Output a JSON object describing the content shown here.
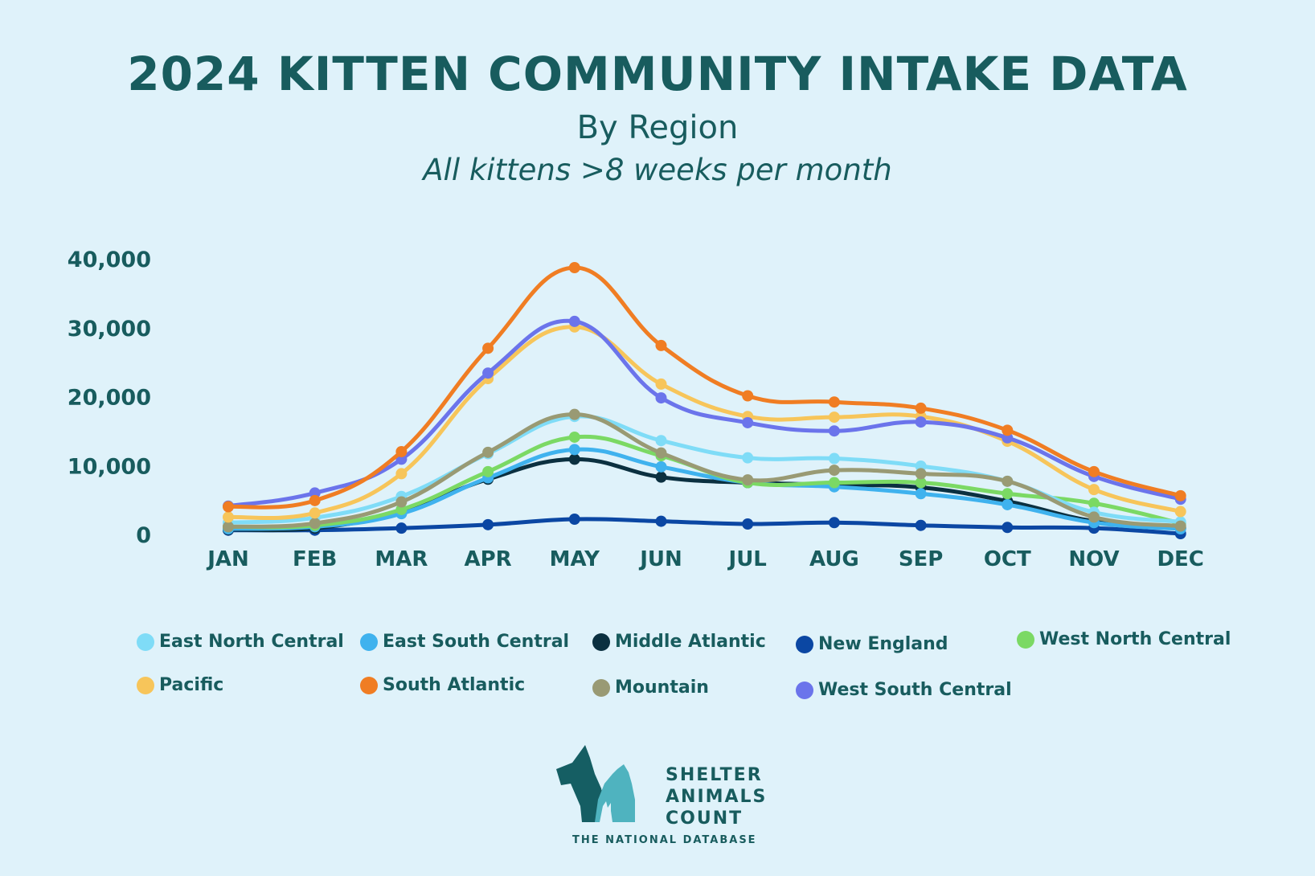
{
  "header": {
    "title": "2024 KITTEN COMMUNITY INTAKE DATA",
    "subtitle": "By Region",
    "subtitle2": "All kittens >8 weeks per month"
  },
  "chart_data": {
    "type": "line",
    "title": "2024 KITTEN COMMUNITY INTAKE DATA",
    "subtitle": "By Region",
    "xlabel": "",
    "ylabel": "",
    "categories": [
      "JAN",
      "FEB",
      "MAR",
      "APR",
      "MAY",
      "JUN",
      "JUL",
      "AUG",
      "SEP",
      "OCT",
      "NOV",
      "DEC"
    ],
    "y_ticks": [
      {
        "value": 0,
        "label": "0"
      },
      {
        "value": 10000,
        "label": "10,000"
      },
      {
        "value": 20000,
        "label": "20,000"
      },
      {
        "value": 30000,
        "label": "30,000"
      },
      {
        "value": 40000,
        "label": "40,000"
      }
    ],
    "ylim": [
      0,
      40000
    ],
    "grid": false,
    "legend_position": "bottom",
    "series": [
      {
        "name": "New England",
        "color": "#0b47a3",
        "values": [
          500,
          500,
          800,
          1300,
          2100,
          1800,
          1400,
          1600,
          1200,
          900,
          800,
          0
        ]
      },
      {
        "name": "Middle Atlantic",
        "color": "#0b3040",
        "values": [
          600,
          800,
          3200,
          7900,
          10800,
          8200,
          7400,
          7100,
          6700,
          4700,
          1800,
          800
        ]
      },
      {
        "name": "East South Central",
        "color": "#3fb2ee",
        "values": [
          700,
          1000,
          2900,
          8100,
          12200,
          9700,
          7400,
          6800,
          5800,
          4200,
          1600,
          700
        ]
      },
      {
        "name": "West North Central",
        "color": "#7bd964",
        "values": [
          1000,
          1200,
          3500,
          9000,
          14000,
          11300,
          7400,
          7400,
          7400,
          5800,
          4400,
          1500
        ]
      },
      {
        "name": "East North Central",
        "color": "#7fdcf7",
        "values": [
          1600,
          2300,
          5400,
          11600,
          17000,
          13500,
          11000,
          10900,
          9800,
          7600,
          3100,
          1700
        ]
      },
      {
        "name": "Mountain",
        "color": "#999a74",
        "values": [
          1000,
          1500,
          4600,
          11800,
          17300,
          11700,
          7800,
          9200,
          8700,
          7600,
          2400,
          1100
        ]
      },
      {
        "name": "Pacific",
        "color": "#f7c55a",
        "values": [
          2400,
          3000,
          8700,
          22500,
          30000,
          21700,
          17000,
          16900,
          17000,
          13400,
          6400,
          3200
        ]
      },
      {
        "name": "West South Central",
        "color": "#6b74eb",
        "values": [
          4000,
          5900,
          10800,
          23300,
          30800,
          19700,
          16100,
          14900,
          16200,
          13900,
          8300,
          5000
        ]
      },
      {
        "name": "South Atlantic",
        "color": "#f07d23",
        "values": [
          3900,
          4800,
          11900,
          26900,
          38600,
          27300,
          20000,
          19100,
          18200,
          15000,
          9000,
          5500
        ]
      }
    ]
  },
  "legend": [
    {
      "label": "East North Central",
      "color": "#7fdcf7"
    },
    {
      "label": "East South Central",
      "color": "#3fb2ee"
    },
    {
      "label": "Middle Atlantic",
      "color": "#0b3040"
    },
    {
      "label": "New England",
      "color": "#0b47a3"
    },
    {
      "label": "West North Central",
      "color": "#7bd964"
    },
    {
      "label": "Pacific",
      "color": "#f7c55a"
    },
    {
      "label": "South Atlantic",
      "color": "#f07d23"
    },
    {
      "label": "Mountain",
      "color": "#999a74"
    },
    {
      "label": "West South Central",
      "color": "#6b74eb"
    }
  ],
  "logo": {
    "line1": "SHELTER",
    "line2": "ANIMALS",
    "line3": "COUNT",
    "tagline": "THE NATIONAL DATABASE"
  }
}
